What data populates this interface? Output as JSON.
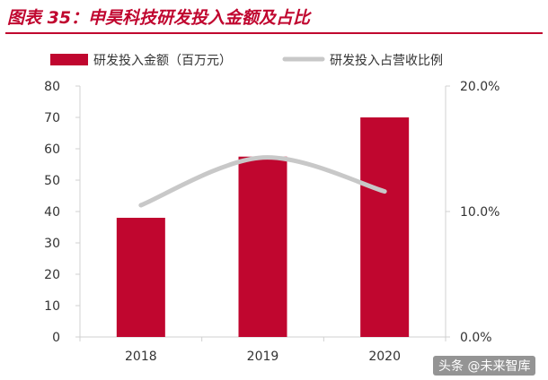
{
  "figure": {
    "title": "图表 35：申昊科技研发投入金额及占比",
    "watermark": "头条 @未来智库"
  },
  "colors": {
    "bar": "#c0062f",
    "line": "#c8c8c8",
    "title": "#c0062f"
  },
  "chart_data": {
    "type": "bar",
    "categories": [
      "2018",
      "2019",
      "2020"
    ],
    "series": [
      {
        "name": "研发投入金额（百万元）",
        "type": "bar",
        "axis": "left",
        "values": [
          38,
          57.5,
          70
        ]
      },
      {
        "name": "研发投入占营收比例",
        "type": "line",
        "axis": "right",
        "values": [
          0.105,
          0.143,
          0.116
        ]
      }
    ],
    "ylim": [
      0,
      80
    ],
    "y_ticks": [
      "0",
      "10",
      "20",
      "30",
      "40",
      "50",
      "60",
      "70",
      "80"
    ],
    "y2lim": [
      0,
      0.2
    ],
    "y2_ticks": [
      "0.0%",
      "10.0%",
      "20.0%"
    ],
    "legend_position": "top",
    "grid": false
  }
}
